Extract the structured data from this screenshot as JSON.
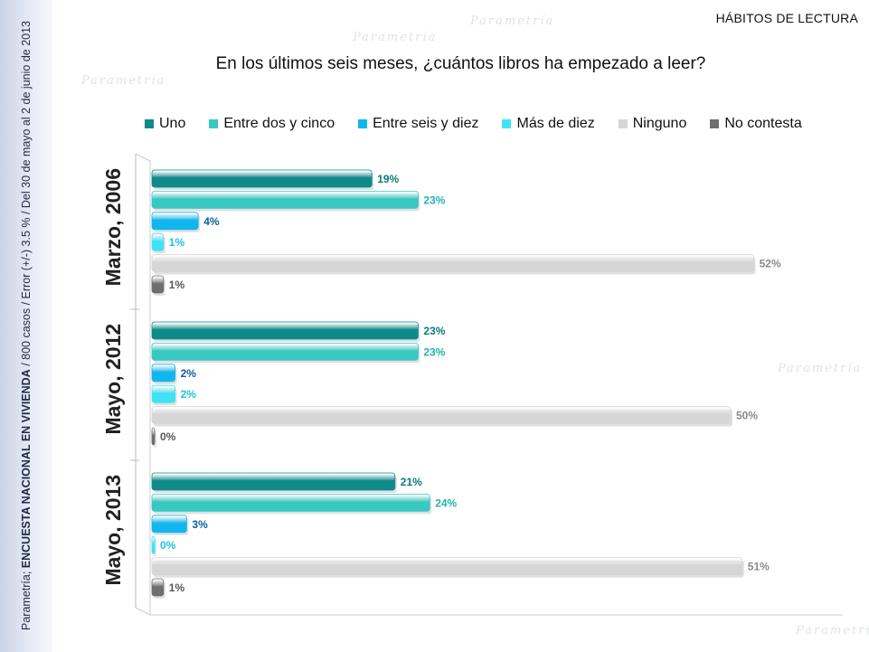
{
  "header": {
    "section_title": "HÁBITOS DE LECTURA",
    "question": "En los últimos seis meses, ¿cuántos libros ha empezado a leer?"
  },
  "sidebar": {
    "source_prefix": "Parametría; ",
    "survey_name": "ENCUESTA NACIONAL EN VIVIENDA",
    "details": " / 800 casos / Error (+/-) 3.5 % / Del 30 de mayo al 2  de junio de 2013"
  },
  "watermark_text": "Parametría",
  "chart_data": {
    "type": "bar",
    "orientation": "horizontal",
    "title": "En los últimos seis meses, ¿cuántos libros ha empezado a leer?",
    "xlim": [
      0,
      55
    ],
    "grid": false,
    "legend_position": "top",
    "categories": [
      "Marzo, 2006",
      "Mayo, 2012",
      "Mayo, 2013"
    ],
    "series": [
      {
        "name": "Uno",
        "color": "#0e8a8a",
        "label_color": "#0b7b7b",
        "values": [
          19,
          23,
          21
        ],
        "labels": [
          "19%",
          "23%",
          "21%"
        ]
      },
      {
        "name": "Entre dos y cinco",
        "color": "#36c8c1",
        "label_color": "#22b3ad",
        "values": [
          23,
          23,
          24
        ],
        "labels": [
          "23%",
          "23%",
          "24%"
        ]
      },
      {
        "name": "Entre seis y diez",
        "color": "#12b6ee",
        "label_color": "#0a5f9e",
        "values": [
          4,
          2,
          3
        ],
        "labels": [
          "4%",
          "2%",
          "3%"
        ]
      },
      {
        "name": "Más de diez",
        "color": "#3fe3f4",
        "label_color": "#1fc3dd",
        "values": [
          1,
          2,
          0
        ],
        "labels": [
          "1%",
          "2%",
          "0%"
        ]
      },
      {
        "name": "Ninguno",
        "color": "#d6d6d6",
        "label_color": "#8a8a8a",
        "values": [
          52,
          50,
          51
        ],
        "labels": [
          "52%",
          "50%",
          "51%"
        ]
      },
      {
        "name": "No contesta",
        "color": "#6e6e6e",
        "label_color": "#555555",
        "values": [
          1,
          0,
          1
        ],
        "labels": [
          "1%",
          "0%",
          "1%"
        ]
      }
    ]
  }
}
